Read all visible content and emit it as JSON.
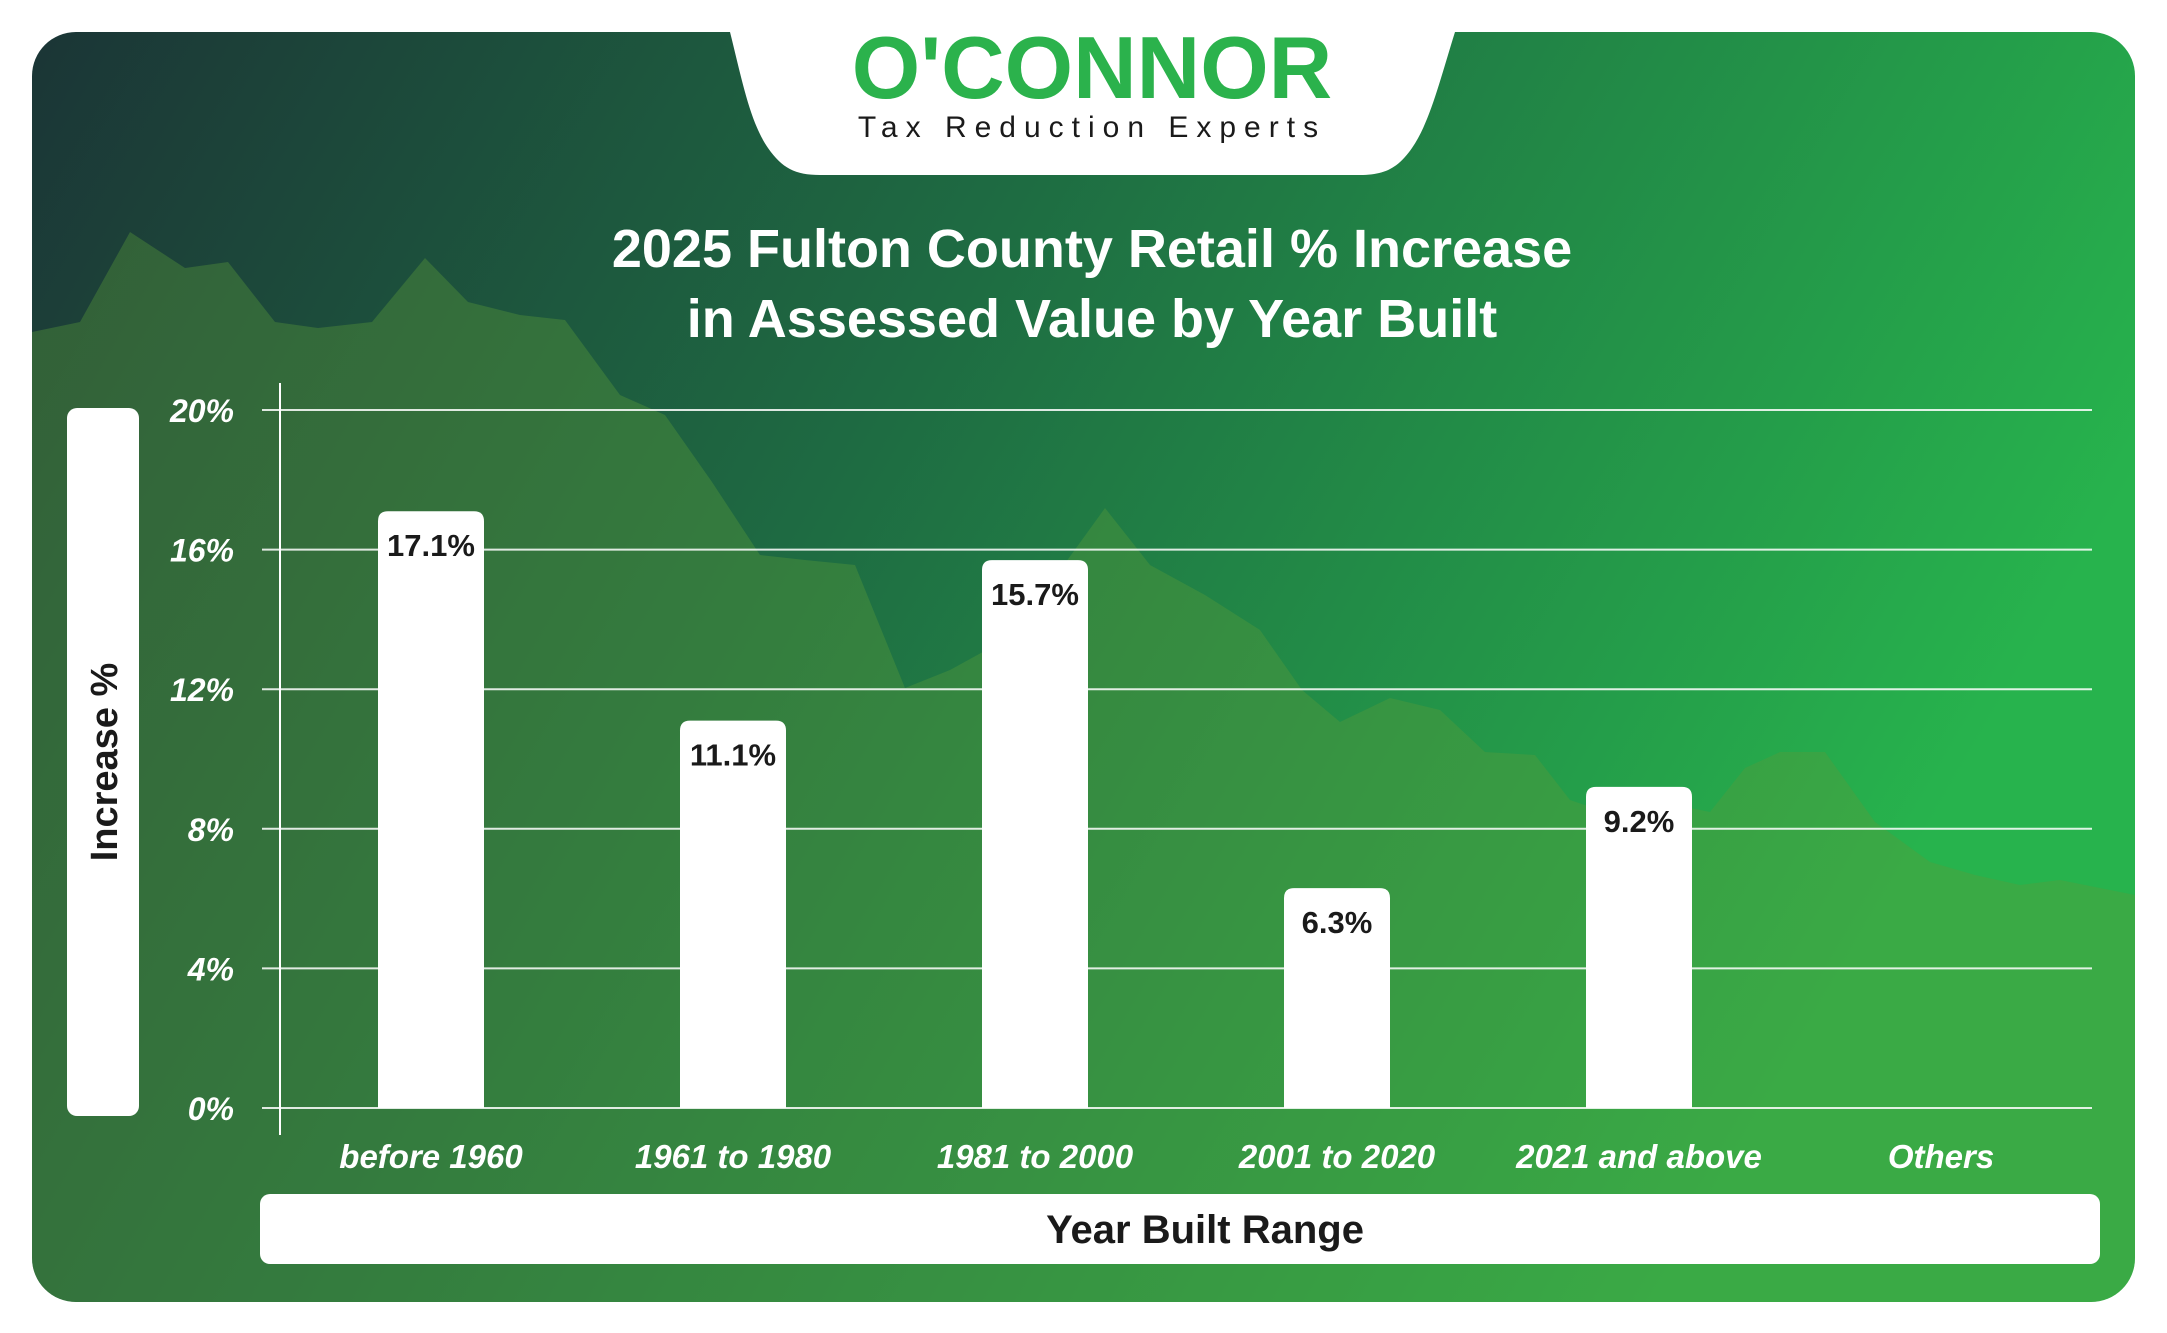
{
  "brand": {
    "name": "O'CONNOR",
    "tagline": "Tax Reduction Experts",
    "color": "#2bb24c"
  },
  "colors": {
    "bg_dark": "#1b3536",
    "bg_mid": "#1e6b42",
    "bg_light": "#27b34d",
    "bar": "#ffffff",
    "label_text": "#1a1a1a"
  },
  "chart_data": {
    "type": "bar",
    "title": "2025 Fulton County Retail % Increase",
    "subtitle": "in Assessed Value by Year Built",
    "xlabel": "Year Built Range",
    "ylabel": "Increase %",
    "categories": [
      "before 1960",
      "1961 to 1980",
      "1981 to 2000",
      "2001 to 2020",
      "2021 and above",
      "Others"
    ],
    "values": [
      17.1,
      11.1,
      15.7,
      6.3,
      9.2,
      null
    ],
    "value_labels": [
      "17.1%",
      "11.1%",
      "15.7%",
      "6.3%",
      "9.2%",
      ""
    ],
    "ylim": [
      0,
      20
    ],
    "yticks": [
      0,
      4,
      8,
      12,
      16,
      20
    ],
    "ytick_labels": [
      "0%",
      "4%",
      "8%",
      "12%",
      "16%",
      "20%"
    ],
    "grid": true,
    "legend": "none"
  }
}
